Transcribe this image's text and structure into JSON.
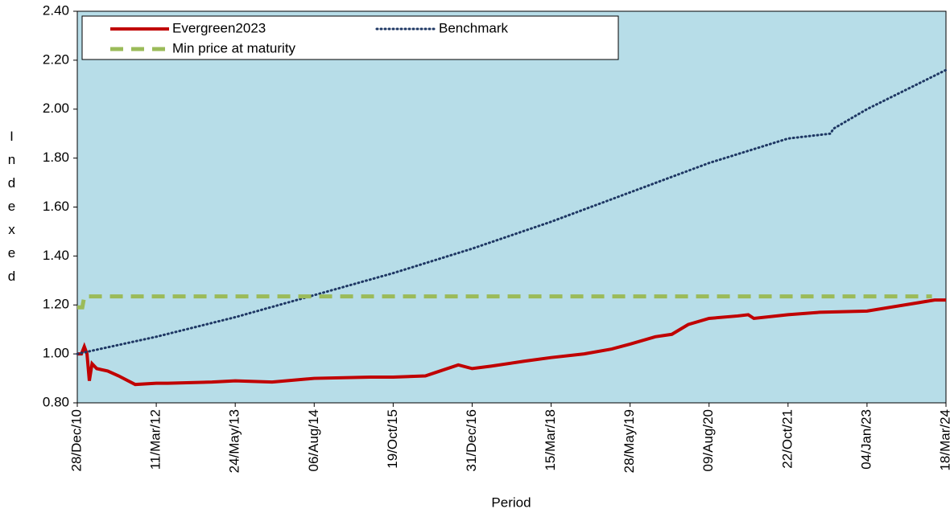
{
  "chart_data": {
    "type": "line",
    "x_label": "Period",
    "y_label": "Indexed",
    "xlim": [
      "2010-12-28",
      "2024-03-18"
    ],
    "xticks": [
      {
        "value": "2010-12-28",
        "label": "28/Dec/10"
      },
      {
        "value": "2012-03-11",
        "label": "11/Mar/12"
      },
      {
        "value": "2013-05-24",
        "label": "24/May/13"
      },
      {
        "value": "2014-08-06",
        "label": "06/Aug/14"
      },
      {
        "value": "2015-10-19",
        "label": "19/Oct/15"
      },
      {
        "value": "2016-12-31",
        "label": "31/Dec/16"
      },
      {
        "value": "2018-03-15",
        "label": "15/Mar/18"
      },
      {
        "value": "2019-05-28",
        "label": "28/May/19"
      },
      {
        "value": "2020-08-09",
        "label": "09/Aug/20"
      },
      {
        "value": "2021-10-22",
        "label": "22/Oct/21"
      },
      {
        "value": "2023-01-04",
        "label": "04/Jan/23"
      },
      {
        "value": "2024-03-18",
        "label": "18/Mar/24"
      }
    ],
    "ylim": [
      0.8,
      2.4
    ],
    "yticks": [
      {
        "value": 0.8,
        "label": "0.80"
      },
      {
        "value": 1.0,
        "label": "1.00"
      },
      {
        "value": 1.2,
        "label": "1.20"
      },
      {
        "value": 1.4,
        "label": "1.40"
      },
      {
        "value": 1.6,
        "label": "1.60"
      },
      {
        "value": 1.8,
        "label": "1.80"
      },
      {
        "value": 2.0,
        "label": "2.00"
      },
      {
        "value": 2.2,
        "label": "2.20"
      },
      {
        "value": 2.4,
        "label": "2.40"
      }
    ],
    "legend": "upper left",
    "plot_background": "#b7dde8",
    "series": [
      {
        "name": "Evergreen2023",
        "color": "#c00000",
        "style": "solid",
        "x": [
          "2010-12-28",
          "2011-01-20",
          "2011-02-05",
          "2011-02-20",
          "2011-03-05",
          "2011-03-20",
          "2011-04-15",
          "2011-06-15",
          "2011-08-15",
          "2011-11-15",
          "2012-03-11",
          "2012-05-15",
          "2013-01-15",
          "2013-05-24",
          "2013-12-15",
          "2014-08-06",
          "2015-06-15",
          "2015-10-19",
          "2016-04-15",
          "2016-06-15",
          "2016-10-15",
          "2016-12-31",
          "2017-04-15",
          "2017-10-15",
          "2018-03-15",
          "2018-09-15",
          "2019-02-15",
          "2019-05-28",
          "2019-10-15",
          "2020-01-15",
          "2020-04-15",
          "2020-08-09",
          "2021-01-15",
          "2021-03-15",
          "2021-04-15",
          "2021-10-22",
          "2022-04-15",
          "2023-01-04",
          "2024-01-15",
          "2024-03-18"
        ],
        "values": [
          1.0,
          1.0,
          1.03,
          1.0,
          0.89,
          0.96,
          0.94,
          0.93,
          0.91,
          0.875,
          0.88,
          0.88,
          0.885,
          0.89,
          0.885,
          0.9,
          0.905,
          0.905,
          0.91,
          0.925,
          0.955,
          0.94,
          0.95,
          0.97,
          0.985,
          1.0,
          1.02,
          1.04,
          1.07,
          1.08,
          1.12,
          1.145,
          1.155,
          1.16,
          1.145,
          1.16,
          1.17,
          1.175,
          1.22,
          1.22
        ]
      },
      {
        "name": "Benchmark",
        "color": "#1f3864",
        "style": "dotted",
        "x": [
          "2010-12-28",
          "2012-03-11",
          "2013-05-24",
          "2014-08-06",
          "2015-10-19",
          "2016-12-31",
          "2018-03-15",
          "2019-05-28",
          "2020-08-09",
          "2021-10-22",
          "2022-06-15",
          "2022-07-01",
          "2023-01-04",
          "2024-03-18"
        ],
        "values": [
          1.0,
          1.07,
          1.15,
          1.24,
          1.33,
          1.43,
          1.54,
          1.66,
          1.78,
          1.88,
          1.9,
          1.92,
          2.0,
          2.16
        ]
      },
      {
        "name": "Min price at maturity",
        "color": "#9bbb59",
        "style": "dashed",
        "x": [
          "2010-12-28",
          "2011-01-25",
          "2011-02-05",
          "2023-12-31"
        ],
        "values": [
          1.19,
          1.19,
          1.235,
          1.235
        ]
      }
    ]
  }
}
